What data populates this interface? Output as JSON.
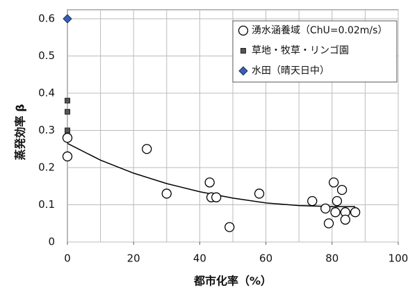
{
  "chart_data": {
    "type": "scatter",
    "xlabel": "都市化率（%）",
    "ylabel": "蒸発効率 β",
    "xlim": [
      0,
      100
    ],
    "xticks": [
      0,
      20,
      40,
      60,
      80,
      100
    ],
    "xgrid": [
      10,
      20,
      30,
      40,
      50,
      60,
      70,
      80,
      90,
      100
    ],
    "ylim": [
      0,
      0.6
    ],
    "yticks": [
      0,
      0.1,
      0.2,
      0.3,
      0.4,
      0.5,
      0.6
    ],
    "grid": true,
    "legend": "upper right",
    "series": [
      {
        "name": "湧水涵養域（ChU=0.02m/s）",
        "marker": "circle",
        "color": "#000000",
        "x": [
          0,
          0,
          24,
          30,
          43,
          43.5,
          45,
          49,
          58,
          74,
          78,
          79,
          80.5,
          81,
          81.5,
          83,
          84,
          84,
          87
        ],
        "values": [
          0.28,
          0.23,
          0.25,
          0.13,
          0.16,
          0.12,
          0.12,
          0.04,
          0.13,
          0.11,
          0.09,
          0.05,
          0.16,
          0.08,
          0.11,
          0.14,
          0.08,
          0.06,
          0.08
        ]
      },
      {
        "name": "草地・牧草・リンゴ園",
        "marker": "square",
        "color": "#555555",
        "x": [
          0,
          0,
          0
        ],
        "values": [
          0.38,
          0.35,
          0.3
        ]
      },
      {
        "name": "水田（晴天日中）",
        "marker": "diamond",
        "color": "#3a5fb0",
        "x": [
          0
        ],
        "values": [
          0.6
        ]
      }
    ],
    "curve": {
      "color": "#000000",
      "x": [
        0,
        10,
        20,
        30,
        40,
        50,
        60,
        70,
        80,
        87
      ],
      "values": [
        0.265,
        0.22,
        0.185,
        0.157,
        0.135,
        0.118,
        0.105,
        0.098,
        0.095,
        0.095
      ]
    }
  }
}
